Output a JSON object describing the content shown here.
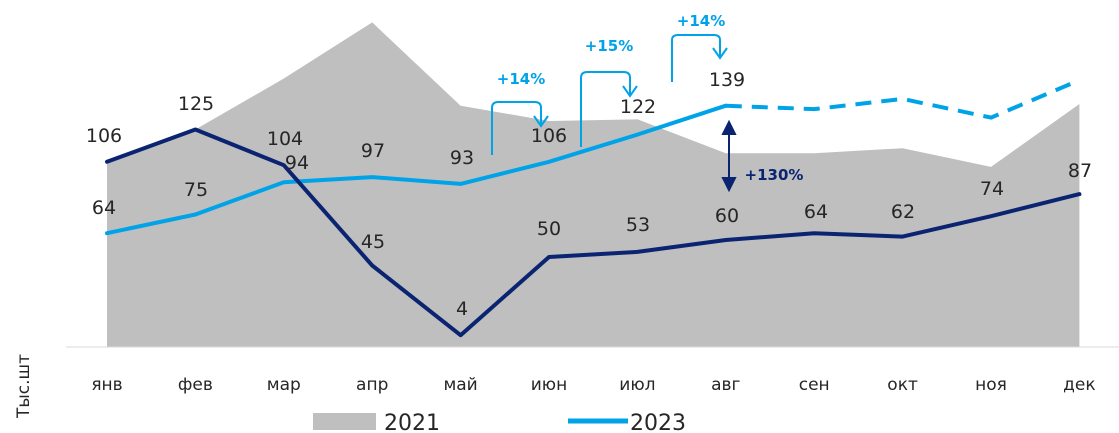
{
  "chart_data": {
    "type": "area+line",
    "ylabel": "Тыс.шт",
    "categories": [
      "янв",
      "фев",
      "мар",
      "апр",
      "май",
      "июн",
      "июл",
      "авг",
      "сен",
      "окт",
      "ноя",
      "дек"
    ],
    "grid": false,
    "legend_position": "bottom",
    "area_series": {
      "name": "2021",
      "color": "#bfbfbf",
      "values": [
        106,
        125,
        155,
        188,
        139,
        130,
        131,
        111,
        111,
        114,
        103,
        140
      ]
    },
    "line_series": [
      {
        "name": "2023",
        "color": "#00a3e8",
        "values": [
          64,
          75,
          94,
          97,
          93,
          106,
          122,
          139
        ],
        "forecast_values": [
          139,
          137,
          143,
          132,
          154
        ],
        "forecast_start_index": 7,
        "forecast_style": "dashed"
      },
      {
        "name": "",
        "color": "#0b2471",
        "values": [
          106,
          125,
          104,
          45,
          4,
          50,
          53,
          60,
          64,
          62,
          74,
          87
        ]
      }
    ],
    "data_labels": [
      {
        "text": "106",
        "color": "#262626"
      },
      {
        "text": "64",
        "color": "#262626"
      },
      {
        "text": "125",
        "color": "#262626"
      },
      {
        "text": "75",
        "color": "#262626"
      },
      {
        "text": "104",
        "color": "#262626"
      },
      {
        "text": "94",
        "color": "#262626"
      },
      {
        "text": "97",
        "color": "#262626"
      },
      {
        "text": "45",
        "color": "#262626"
      },
      {
        "text": "93",
        "color": "#262626"
      },
      {
        "text": "4",
        "color": "#262626"
      },
      {
        "text": "106",
        "color": "#262626"
      },
      {
        "text": "50",
        "color": "#262626"
      },
      {
        "text": "122",
        "color": "#262626"
      },
      {
        "text": "53",
        "color": "#262626"
      },
      {
        "text": "139",
        "color": "#262626"
      },
      {
        "text": "60",
        "color": "#262626"
      },
      {
        "text": "64",
        "color": "#262626"
      },
      {
        "text": "62",
        "color": "#262626"
      },
      {
        "text": "74",
        "color": "#262626"
      },
      {
        "text": "87",
        "color": "#262626"
      }
    ],
    "annotations": [
      {
        "text": "+14%",
        "color": "#00a3e8"
      },
      {
        "text": "+15%",
        "color": "#00a3e8"
      },
      {
        "text": "+14%",
        "color": "#00a3e8"
      },
      {
        "text": "+130%",
        "color": "#0b2471"
      }
    ],
    "legend": [
      {
        "label": "2021",
        "color": "#bfbfbf",
        "style": "area"
      },
      {
        "label": "2023",
        "color": "#00a3e8",
        "style": "line"
      }
    ]
  }
}
